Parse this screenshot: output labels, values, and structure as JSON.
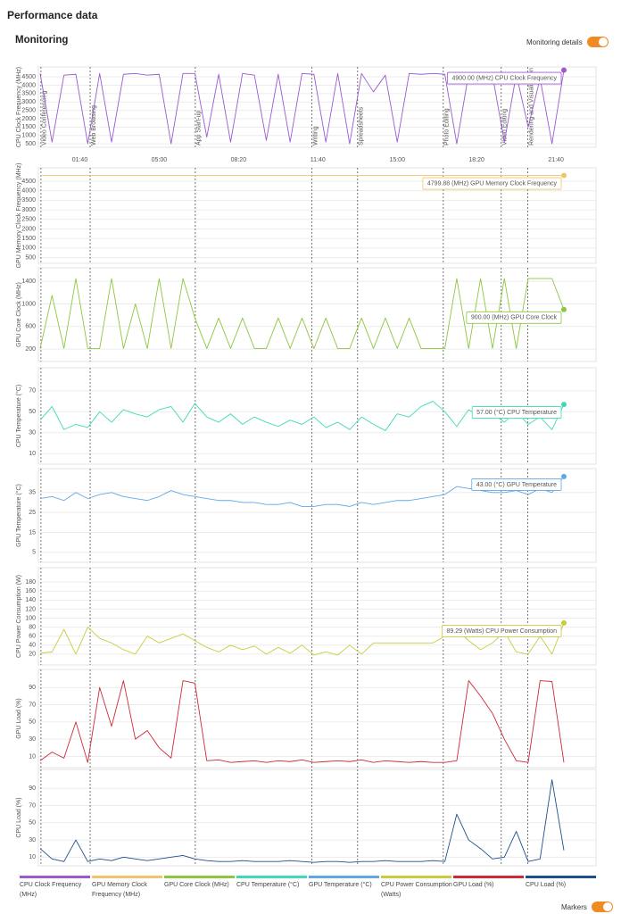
{
  "header": {
    "title": "Performance data",
    "section": "Monitoring",
    "toggle_label": "Monitoring details"
  },
  "footer": {
    "toggle_label": "Markers"
  },
  "chart_data": [
    {
      "type": "line",
      "ylabel": "CPU Clock Frequency (MHz)",
      "xlim": [
        0,
        1320
      ],
      "ylim": [
        290,
        5090
      ],
      "yticks": [
        500,
        1000,
        1500,
        2000,
        2500,
        3000,
        3500,
        4000,
        4500
      ],
      "xticks": [
        {
          "value": 100,
          "label": "01:40"
        },
        {
          "value": 300,
          "label": "05:00"
        },
        {
          "value": 500,
          "label": "08:20"
        },
        {
          "value": 700,
          "label": "11:40"
        },
        {
          "value": 900,
          "label": "15:00"
        },
        {
          "value": 1100,
          "label": "18:20"
        },
        {
          "value": 1300,
          "label": "21:40"
        }
      ],
      "markers": [
        {
          "x": 2,
          "label": "Video Conferencing"
        },
        {
          "x": 126,
          "label": "Web Browsing"
        },
        {
          "x": 391,
          "label": "App Start-up"
        },
        {
          "x": 685,
          "label": "Writing"
        },
        {
          "x": 800,
          "label": "Spreadsheets"
        },
        {
          "x": 1016,
          "label": "Photo Editing"
        },
        {
          "x": 1162,
          "label": "Video Editing"
        },
        {
          "x": 1229,
          "label": "Rendering and Visualization"
        }
      ],
      "x": [
        0,
        30,
        60,
        90,
        120,
        150,
        180,
        210,
        240,
        270,
        300,
        330,
        360,
        390,
        420,
        450,
        480,
        510,
        540,
        570,
        600,
        630,
        660,
        690,
        720,
        750,
        780,
        810,
        840,
        870,
        900,
        930,
        960,
        990,
        1020,
        1050,
        1080,
        1110,
        1140,
        1170,
        1200,
        1230,
        1260,
        1290,
        1320
      ],
      "series": [
        {
          "name": "CPU Clock Frequency (MHz)",
          "color": "#9b59d0",
          "values": [
            4700,
            600,
            4600,
            4650,
            500,
            4700,
            600,
            4650,
            4700,
            4600,
            4650,
            500,
            4700,
            4700,
            900,
            4650,
            600,
            4700,
            4600,
            700,
            4650,
            600,
            4700,
            4650,
            600,
            4700,
            500,
            4700,
            3600,
            4600,
            600,
            4700,
            4650,
            4700,
            4650,
            500,
            4700,
            4650,
            4600,
            600,
            4650,
            1500,
            4400,
            500,
            4900
          ]
        }
      ],
      "annotation": "4900.00 (MHz) CPU Clock Frequency"
    },
    {
      "type": "line",
      "ylabel": "GPU Memory Clock Frequency (MHz)",
      "xlim": [
        0,
        1320
      ],
      "ylim": [
        200,
        5200
      ],
      "yticks": [
        500,
        1000,
        1500,
        2000,
        2500,
        3000,
        3500,
        4000,
        4500
      ],
      "x": [
        0,
        30,
        60,
        90,
        120,
        150,
        180,
        210,
        240,
        270,
        300,
        330,
        360,
        390,
        420,
        450,
        480,
        510,
        540,
        570,
        600,
        630,
        660,
        690,
        720,
        750,
        780,
        810,
        840,
        870,
        900,
        930,
        960,
        990,
        1020,
        1050,
        1080,
        1110,
        1140,
        1170,
        1200,
        1230,
        1260,
        1290,
        1320
      ],
      "series": [
        {
          "name": "GPU Memory Clock Frequency (MHz)",
          "color": "#f0c46a",
          "values": [
            4800,
            4800,
            4800,
            4800,
            4800,
            4800,
            4800,
            4800,
            4800,
            4800,
            4800,
            4800,
            4800,
            4800,
            4800,
            4800,
            4800,
            4800,
            4800,
            4800,
            4800,
            4800,
            4800,
            4800,
            4800,
            4800,
            4800,
            4800,
            4800,
            4800,
            4800,
            4800,
            4800,
            4800,
            4800,
            4800,
            4800,
            4800,
            4800,
            4800,
            4800,
            4800,
            4800,
            4800,
            4799.88
          ]
        }
      ],
      "annotation": "4799.88 (MHz) GPU Memory Clock Frequency"
    },
    {
      "type": "line",
      "ylabel": "GPU Core Clock (MHz)",
      "xlim": [
        0,
        1320
      ],
      "ylim": [
        -20,
        1640
      ],
      "yticks": [
        200,
        600,
        1000,
        1400
      ],
      "x": [
        0,
        30,
        60,
        90,
        120,
        150,
        180,
        210,
        240,
        270,
        300,
        330,
        360,
        390,
        420,
        450,
        480,
        510,
        540,
        570,
        600,
        630,
        660,
        690,
        720,
        750,
        780,
        810,
        840,
        870,
        900,
        930,
        960,
        990,
        1020,
        1050,
        1080,
        1110,
        1140,
        1170,
        1200,
        1230,
        1260,
        1290,
        1320
      ],
      "series": [
        {
          "name": "GPU Core Clock (MHz)",
          "color": "#8dc63f",
          "values": [
            210,
            1150,
            210,
            1450,
            210,
            210,
            1450,
            210,
            1000,
            210,
            1450,
            210,
            1450,
            750,
            210,
            750,
            210,
            750,
            210,
            210,
            750,
            210,
            750,
            210,
            750,
            210,
            210,
            750,
            210,
            750,
            210,
            750,
            210,
            210,
            210,
            1450,
            210,
            1450,
            210,
            1450,
            210,
            1450,
            1450,
            1450,
            900
          ]
        }
      ],
      "annotation": "900.00 (MHz) GPU Core Clock"
    },
    {
      "type": "line",
      "ylabel": "CPU Temperature (°C)",
      "xlim": [
        0,
        1320
      ],
      "ylim": [
        0,
        92
      ],
      "yticks": [
        10,
        30,
        50,
        70
      ],
      "x": [
        0,
        30,
        60,
        90,
        120,
        150,
        180,
        210,
        240,
        270,
        300,
        330,
        360,
        390,
        420,
        450,
        480,
        510,
        540,
        570,
        600,
        630,
        660,
        690,
        720,
        750,
        780,
        810,
        840,
        870,
        900,
        930,
        960,
        990,
        1020,
        1050,
        1080,
        1110,
        1140,
        1170,
        1200,
        1230,
        1260,
        1290,
        1320
      ],
      "series": [
        {
          "name": "CPU Temperature (°C)",
          "color": "#3fd9b8",
          "values": [
            42,
            55,
            33,
            38,
            35,
            50,
            40,
            52,
            48,
            45,
            52,
            55,
            40,
            58,
            45,
            40,
            48,
            38,
            45,
            40,
            36,
            42,
            38,
            45,
            35,
            40,
            33,
            45,
            38,
            32,
            48,
            45,
            55,
            60,
            50,
            36,
            52,
            45,
            48,
            40,
            50,
            38,
            45,
            33,
            57
          ]
        }
      ],
      "annotation": "57.00 (°C) CPU Temperature"
    },
    {
      "type": "line",
      "ylabel": "GPU Temperature (°C)",
      "xlim": [
        0,
        1320
      ],
      "ylim": [
        0,
        47
      ],
      "yticks": [
        5,
        15,
        25,
        35
      ],
      "x": [
        0,
        30,
        60,
        90,
        120,
        150,
        180,
        210,
        240,
        270,
        300,
        330,
        360,
        390,
        420,
        450,
        480,
        510,
        540,
        570,
        600,
        630,
        660,
        690,
        720,
        750,
        780,
        810,
        840,
        870,
        900,
        930,
        960,
        990,
        1020,
        1050,
        1080,
        1110,
        1140,
        1170,
        1200,
        1230,
        1260,
        1290,
        1320
      ],
      "series": [
        {
          "name": "GPU Temperature (°C)",
          "color": "#5fa8e8",
          "values": [
            32,
            33,
            31,
            35,
            32,
            34,
            35,
            33,
            32,
            31,
            33,
            36,
            34,
            33,
            32,
            31,
            31,
            30,
            30,
            29,
            29,
            30,
            28,
            28,
            29,
            29,
            28,
            30,
            29,
            30,
            31,
            31,
            32,
            33,
            34,
            38,
            37,
            36,
            35,
            35,
            36,
            34,
            37,
            35,
            43
          ]
        }
      ],
      "annotation": "43.00 (°C) GPU Temperature"
    },
    {
      "type": "line",
      "ylabel": "CPU Power Consumption (W)",
      "xlim": [
        0,
        1320
      ],
      "ylim": [
        -4,
        212
      ],
      "yticks": [
        20,
        40,
        60,
        80,
        100,
        120,
        140,
        160,
        180
      ],
      "x": [
        0,
        30,
        60,
        90,
        120,
        150,
        180,
        210,
        240,
        270,
        300,
        330,
        360,
        390,
        420,
        450,
        480,
        510,
        540,
        570,
        600,
        630,
        660,
        690,
        720,
        750,
        780,
        810,
        840,
        870,
        900,
        930,
        960,
        990,
        1020,
        1050,
        1080,
        1110,
        1140,
        1170,
        1200,
        1230,
        1260,
        1290,
        1320
      ],
      "series": [
        {
          "name": "CPU Power Consumption (Watts)",
          "color": "#c9cc3f",
          "values": [
            22,
            25,
            75,
            20,
            80,
            55,
            45,
            30,
            20,
            60,
            45,
            55,
            65,
            50,
            35,
            25,
            40,
            30,
            38,
            20,
            35,
            22,
            40,
            18,
            25,
            18,
            40,
            20,
            45,
            45,
            45,
            45,
            45,
            45,
            60,
            75,
            50,
            30,
            45,
            70,
            25,
            20,
            60,
            20,
            89.29
          ]
        }
      ],
      "annotation": "89.29 (Watts) CPU Power Consumption"
    },
    {
      "type": "line",
      "ylabel": "GPU Load (%)",
      "xlim": [
        0,
        1320
      ],
      "ylim": [
        -3,
        111
      ],
      "yticks": [
        10,
        30,
        50,
        70,
        90
      ],
      "x": [
        0,
        30,
        60,
        90,
        120,
        150,
        180,
        210,
        240,
        270,
        300,
        330,
        360,
        390,
        420,
        450,
        480,
        510,
        540,
        570,
        600,
        630,
        660,
        690,
        720,
        750,
        780,
        810,
        840,
        870,
        900,
        930,
        960,
        990,
        1020,
        1050,
        1080,
        1110,
        1140,
        1170,
        1200,
        1230,
        1260,
        1290,
        1320
      ],
      "series": [
        {
          "name": "GPU Load (%)",
          "color": "#cc2a36",
          "values": [
            5,
            15,
            8,
            50,
            3,
            90,
            45,
            98,
            30,
            40,
            20,
            8,
            98,
            95,
            5,
            6,
            3,
            4,
            5,
            3,
            5,
            4,
            6,
            3,
            4,
            5,
            4,
            6,
            3,
            5,
            4,
            3,
            4,
            3,
            3,
            5,
            98,
            80,
            60,
            30,
            5,
            3,
            98,
            97,
            3
          ]
        }
      ]
    },
    {
      "type": "line",
      "ylabel": "CPU Load (%)",
      "xlim": [
        0,
        1320
      ],
      "ylim": [
        0,
        112
      ],
      "yticks": [
        10,
        30,
        50,
        70,
        90
      ],
      "x": [
        0,
        30,
        60,
        90,
        120,
        150,
        180,
        210,
        240,
        270,
        300,
        330,
        360,
        390,
        420,
        450,
        480,
        510,
        540,
        570,
        600,
        630,
        660,
        690,
        720,
        750,
        780,
        810,
        840,
        870,
        900,
        930,
        960,
        990,
        1020,
        1050,
        1080,
        1110,
        1140,
        1170,
        1200,
        1230,
        1260,
        1290,
        1320
      ],
      "series": [
        {
          "name": "CPU Load (%)",
          "color": "#1f4e8c",
          "values": [
            20,
            8,
            5,
            30,
            5,
            8,
            6,
            10,
            8,
            6,
            8,
            10,
            12,
            8,
            6,
            5,
            5,
            6,
            5,
            5,
            5,
            6,
            5,
            4,
            5,
            5,
            4,
            5,
            5,
            6,
            5,
            5,
            5,
            6,
            5,
            60,
            30,
            20,
            8,
            10,
            40,
            5,
            8,
            100,
            18
          ]
        }
      ]
    }
  ]
}
